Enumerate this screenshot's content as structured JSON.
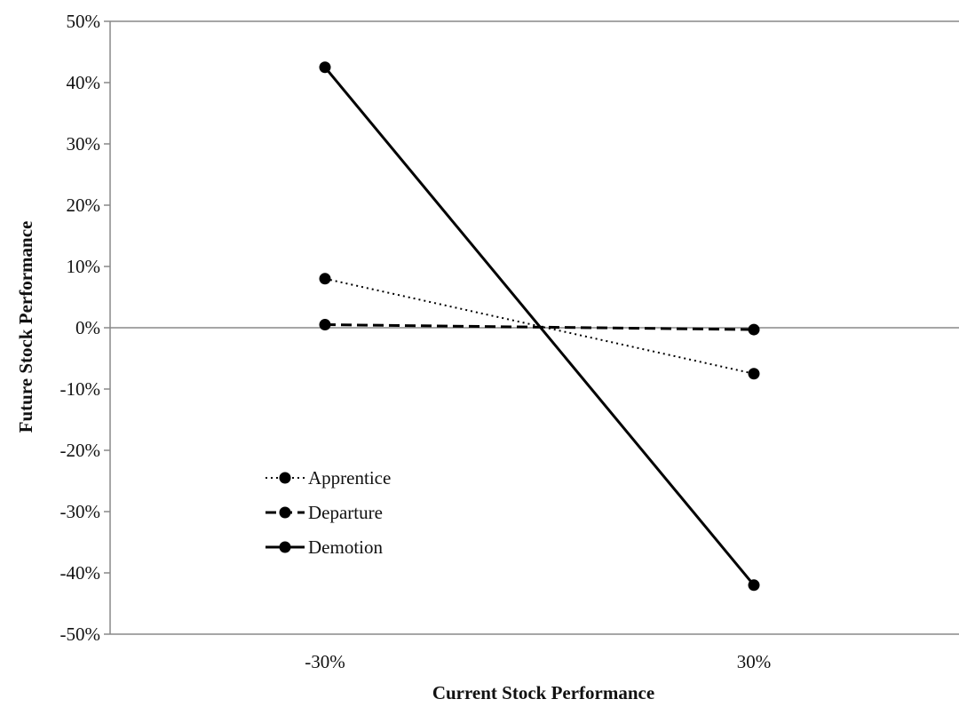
{
  "chart_data": {
    "type": "line",
    "x_categories": [
      "-30%",
      "30%"
    ],
    "xlabel": "Current Stock Performance",
    "ylabel": "Future Stock Performance",
    "ylim": [
      -0.5,
      0.5
    ],
    "y_ticks": [
      0.5,
      0.4,
      0.3,
      0.2,
      0.1,
      0,
      -0.1,
      -0.2,
      -0.3,
      -0.4,
      -0.5
    ],
    "y_tick_labels": [
      "50%",
      "40%",
      "30%",
      "20%",
      "10%",
      "0%",
      "-10%",
      "-20%",
      "-30%",
      "-40%",
      "-50%"
    ],
    "grid": false,
    "legend_position": "lower-left",
    "series": [
      {
        "name": "Apprentice",
        "style": "dotted",
        "values": [
          0.08,
          -0.075
        ]
      },
      {
        "name": "Departure",
        "style": "dashed",
        "values": [
          0.005,
          -0.003
        ]
      },
      {
        "name": "Demotion",
        "style": "solid",
        "values": [
          0.425,
          -0.42
        ]
      }
    ],
    "colors": {
      "line": "#000000",
      "axis": "#888888"
    }
  }
}
